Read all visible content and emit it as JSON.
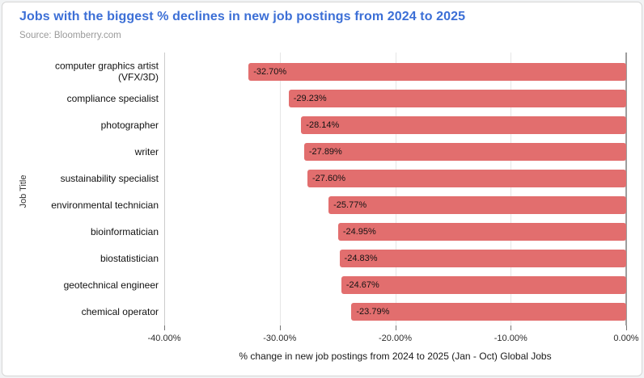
{
  "header": {
    "title": "Jobs with the biggest % declines in new job postings from 2024 to 2025",
    "source": "Source: Bloomberry.com"
  },
  "chart_data": {
    "type": "bar",
    "orientation": "horizontal",
    "title": "Jobs with the biggest % declines in new job postings from 2024 to 2025",
    "source": "Source: Bloomberry.com",
    "categories": [
      "computer graphics artist\n(VFX/3D)",
      "compliance specialist",
      "photographer",
      "writer",
      "sustainability specialist",
      "environmental technician",
      "bioinformatician",
      "biostatistician",
      "geotechnical engineer",
      "chemical operator"
    ],
    "values": [
      -32.7,
      -29.23,
      -28.14,
      -27.89,
      -27.6,
      -25.77,
      -24.95,
      -24.83,
      -24.67,
      -23.79
    ],
    "value_labels": [
      "-32.70%",
      "-29.23%",
      "-28.14%",
      "-27.89%",
      "-27.60%",
      "-25.77%",
      "-24.95%",
      "-24.83%",
      "-24.67%",
      "-23.79%"
    ],
    "xlabel": "% change in new job postings from 2024 to 2025 (Jan - Oct) Global Jobs",
    "ylabel": "Job Title",
    "xlim": [
      -40,
      0
    ],
    "xticks": [
      -40,
      -30,
      -20,
      -10,
      0
    ],
    "xtick_labels": [
      "-40.00%",
      "-30.00%",
      "-20.00%",
      "-10.00%",
      "0.00%"
    ],
    "grid": true,
    "legend": "none"
  },
  "colors": {
    "bar": "#e26e6e",
    "title": "#3c6fd6",
    "source_text": "#9a9a9a",
    "gridline": "#e6e6e6",
    "plot_left_border": "#cccccc",
    "zero_axis": "#9e9e9e"
  }
}
